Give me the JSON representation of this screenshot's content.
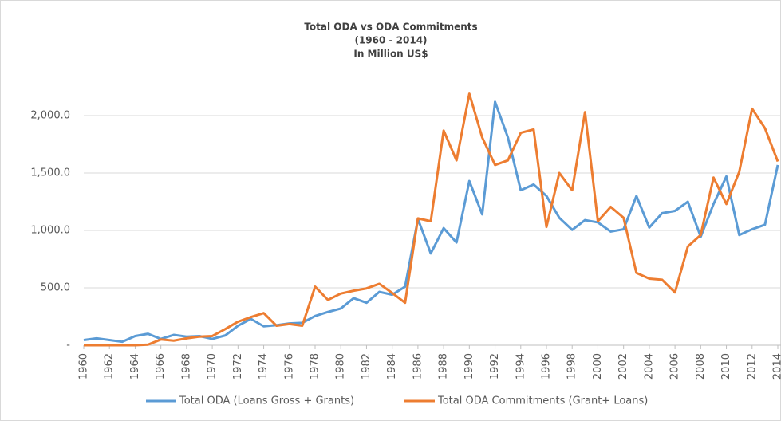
{
  "chart_data": {
    "type": "line",
    "title": [
      "Total ODA vs ODA Commitments",
      "(1960 - 2014)",
      "In Million US$"
    ],
    "x": [
      1960,
      1961,
      1962,
      1963,
      1964,
      1965,
      1966,
      1967,
      1968,
      1969,
      1970,
      1971,
      1972,
      1973,
      1974,
      1975,
      1976,
      1977,
      1978,
      1979,
      1980,
      1981,
      1982,
      1983,
      1984,
      1985,
      1986,
      1987,
      1988,
      1989,
      1990,
      1991,
      1992,
      1993,
      1994,
      1995,
      1996,
      1997,
      1998,
      1999,
      2000,
      2001,
      2002,
      2003,
      2004,
      2005,
      2006,
      2007,
      2008,
      2009,
      2010,
      2011,
      2012,
      2013,
      2014
    ],
    "series": [
      {
        "name": "Total ODA (Loans Gross + Grants)",
        "color": "#5b9bd5",
        "values": [
          45,
          60,
          45,
          30,
          80,
          100,
          55,
          90,
          75,
          80,
          55,
          85,
          170,
          230,
          165,
          175,
          190,
          195,
          255,
          290,
          320,
          410,
          370,
          465,
          440,
          510,
          1100,
          800,
          1020,
          895,
          1430,
          1140,
          2120,
          1810,
          1350,
          1400,
          1300,
          1110,
          1005,
          1090,
          1070,
          990,
          1010,
          1300,
          1025,
          1150,
          1170,
          1250,
          945,
          1230,
          1470,
          960,
          1010,
          1050,
          1570
        ]
      },
      {
        "name": "Total ODA Commitments (Grant+ Loans)",
        "color": "#ed7d31",
        "values": [
          0,
          0,
          0,
          0,
          0,
          5,
          50,
          40,
          60,
          75,
          80,
          140,
          205,
          245,
          280,
          170,
          185,
          170,
          510,
          395,
          450,
          475,
          495,
          535,
          455,
          370,
          1105,
          1080,
          1870,
          1610,
          2190,
          1810,
          1570,
          1610,
          1850,
          1880,
          1030,
          1500,
          1350,
          2030,
          1080,
          1205,
          1110,
          630,
          580,
          570,
          460,
          860,
          960,
          1460,
          1230,
          1510,
          2060,
          1890,
          1600
        ]
      }
    ],
    "xlim": [
      1960,
      2014
    ],
    "xticks": [
      1960,
      1962,
      1964,
      1966,
      1968,
      1970,
      1972,
      1974,
      1976,
      1978,
      1980,
      1982,
      1984,
      1986,
      1988,
      1990,
      1992,
      1994,
      1996,
      1998,
      2000,
      2002,
      2004,
      2006,
      2008,
      2010,
      2012,
      2014
    ],
    "ylim": [
      0,
      2500
    ],
    "yticks": [
      {
        "value": 0,
        "label": "-"
      },
      {
        "value": 500,
        "label": "500.0"
      },
      {
        "value": 1000,
        "label": "1,000.0"
      },
      {
        "value": 1500,
        "label": "1,500.0"
      },
      {
        "value": 2000,
        "label": "2,000.0"
      }
    ],
    "grid": true,
    "legend": "bottom"
  }
}
